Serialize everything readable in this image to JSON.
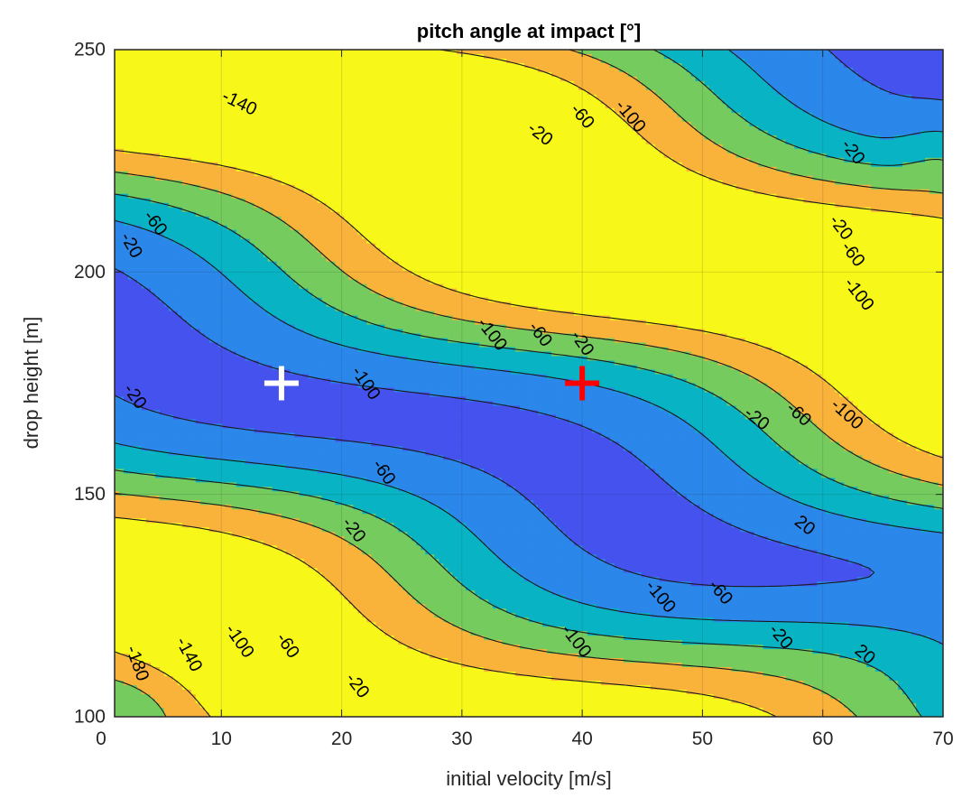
{
  "chart_data": {
    "type": "contour",
    "title": "pitch angle at impact [°]",
    "xlabel": "initial velocity [m/s]",
    "ylabel": "drop height [m]",
    "xlim": [
      1,
      70
    ],
    "ylim": [
      100,
      250
    ],
    "xticks": [
      "0",
      "10",
      "20",
      "30",
      "40",
      "50",
      "60",
      "70"
    ],
    "yticks": [
      "100",
      "150",
      "200",
      "250"
    ],
    "grid": true,
    "colormap": "parula",
    "levels": [
      -180,
      -140,
      -100,
      -60,
      -20,
      20
    ],
    "band_colors": [
      "#3d2fa6",
      "#4552ee",
      "#2b87ea",
      "#08b4c4",
      "#75cb5e",
      "#f9b23a",
      "#f7f719"
    ],
    "contour_labels": [
      {
        "text": "-140",
        "x": 11.5,
        "y": 238,
        "rot": 26
      },
      {
        "text": "-60",
        "x": 4.5,
        "y": 211,
        "rot": 52
      },
      {
        "text": "-20",
        "x": 2.5,
        "y": 206,
        "rot": 60
      },
      {
        "text": "-20",
        "x": 2.8,
        "y": 172,
        "rot": 55
      },
      {
        "text": "-100",
        "x": 22.0,
        "y": 175,
        "rot": 55
      },
      {
        "text": "-60",
        "x": 23.5,
        "y": 155,
        "rot": 55
      },
      {
        "text": "-20",
        "x": 21.0,
        "y": 142,
        "rot": 52
      },
      {
        "text": "-180",
        "x": 3.0,
        "y": 112,
        "rot": 70
      },
      {
        "text": "-140",
        "x": 7.3,
        "y": 114,
        "rot": 62
      },
      {
        "text": "-100",
        "x": 11.5,
        "y": 117,
        "rot": 55
      },
      {
        "text": "-60",
        "x": 15.5,
        "y": 116,
        "rot": 55
      },
      {
        "text": "-20",
        "x": 21.3,
        "y": 107,
        "rot": 52
      },
      {
        "text": "-100",
        "x": 32.5,
        "y": 186,
        "rot": 52
      },
      {
        "text": "-60",
        "x": 36.5,
        "y": 186,
        "rot": 52
      },
      {
        "text": "-20",
        "x": 40.0,
        "y": 184,
        "rot": 55
      },
      {
        "text": "-20",
        "x": 36.5,
        "y": 231,
        "rot": 38
      },
      {
        "text": "-60",
        "x": 40.0,
        "y": 235,
        "rot": 50
      },
      {
        "text": "-100",
        "x": 44.0,
        "y": 235,
        "rot": 50
      },
      {
        "text": "-20",
        "x": 62.5,
        "y": 227,
        "rot": 52
      },
      {
        "text": "-20",
        "x": 61.5,
        "y": 210,
        "rot": 52
      },
      {
        "text": "-60",
        "x": 62.5,
        "y": 204,
        "rot": 52
      },
      {
        "text": "-100",
        "x": 63.0,
        "y": 195,
        "rot": 52
      },
      {
        "text": "-20",
        "x": 54.5,
        "y": 167,
        "rot": 38
      },
      {
        "text": "-60",
        "x": 58.0,
        "y": 168,
        "rot": 42
      },
      {
        "text": "-100",
        "x": 62.0,
        "y": 168,
        "rot": 42
      },
      {
        "text": "20",
        "x": 58.5,
        "y": 143,
        "rot": 38
      },
      {
        "text": "-100",
        "x": 46.5,
        "y": 127,
        "rot": 50
      },
      {
        "text": "-60",
        "x": 51.5,
        "y": 128,
        "rot": 50
      },
      {
        "text": "-20",
        "x": 56.5,
        "y": 118,
        "rot": 50
      },
      {
        "text": "20",
        "x": 63.5,
        "y": 114,
        "rot": 40
      },
      {
        "text": "-100",
        "x": 39.5,
        "y": 117,
        "rot": 52
      }
    ],
    "markers": [
      {
        "x": 15,
        "y": 175,
        "symbol": "+",
        "color": "#ffffff"
      },
      {
        "x": 40,
        "y": 175,
        "symbol": "+",
        "color": "#ff0000"
      }
    ]
  }
}
